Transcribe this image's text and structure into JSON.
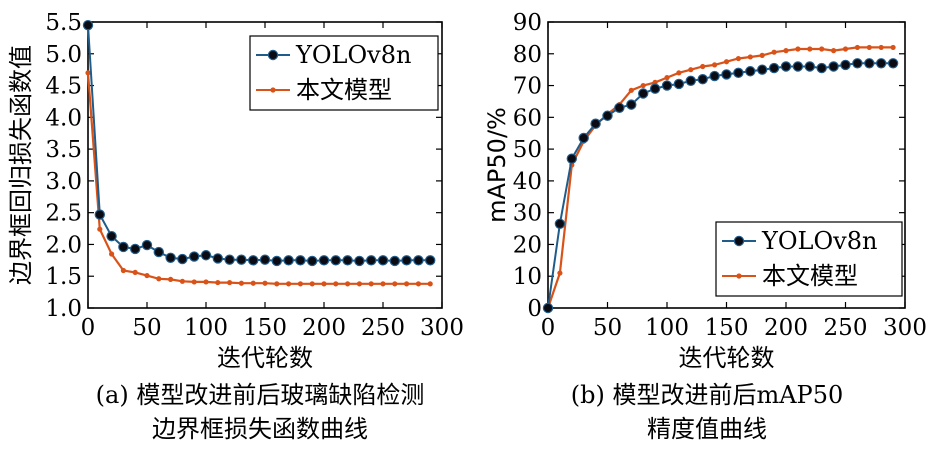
{
  "chart_data": [
    {
      "type": "line",
      "panel": "a",
      "xlabel": "迭代轮数",
      "ylabel": "边界框回归损失函数值",
      "xlim": [
        0,
        300
      ],
      "ylim": [
        1.0,
        5.5
      ],
      "xticks": [
        0,
        50,
        100,
        150,
        200,
        250,
        300
      ],
      "yticks": [
        1.0,
        1.5,
        2.0,
        2.5,
        3.0,
        3.5,
        4.0,
        4.5,
        5.0,
        5.5
      ],
      "ytick_labels": [
        "1.0",
        "1.5",
        "2.0",
        "2.5",
        "3.0",
        "3.5",
        "4.0",
        "4.5",
        "5.0",
        "5.5"
      ],
      "grid": false,
      "legend_position": "top-right",
      "series": [
        {
          "name": "YOLOv8n",
          "color": "#1f5c8a",
          "marker": "black-filled-circle",
          "x": [
            0,
            10,
            20,
            30,
            40,
            50,
            60,
            70,
            80,
            90,
            100,
            110,
            120,
            130,
            140,
            150,
            160,
            170,
            180,
            190,
            200,
            210,
            220,
            230,
            240,
            250,
            260,
            270,
            280,
            290
          ],
          "values": [
            5.45,
            2.47,
            2.13,
            1.96,
            1.93,
            1.99,
            1.88,
            1.79,
            1.77,
            1.81,
            1.83,
            1.78,
            1.76,
            1.76,
            1.75,
            1.76,
            1.74,
            1.75,
            1.75,
            1.74,
            1.75,
            1.75,
            1.75,
            1.74,
            1.75,
            1.75,
            1.74,
            1.75,
            1.75,
            1.75
          ]
        },
        {
          "name": "本文模型",
          "color": "#d95319",
          "marker": "small-dot",
          "x": [
            0,
            10,
            20,
            30,
            40,
            50,
            60,
            70,
            80,
            90,
            100,
            110,
            120,
            130,
            140,
            150,
            160,
            170,
            180,
            190,
            200,
            210,
            220,
            230,
            240,
            250,
            260,
            270,
            280,
            290
          ],
          "values": [
            4.7,
            2.24,
            1.85,
            1.59,
            1.56,
            1.51,
            1.46,
            1.45,
            1.42,
            1.41,
            1.41,
            1.4,
            1.4,
            1.39,
            1.39,
            1.39,
            1.38,
            1.38,
            1.38,
            1.38,
            1.38,
            1.38,
            1.38,
            1.38,
            1.38,
            1.38,
            1.38,
            1.38,
            1.38,
            1.38
          ]
        }
      ]
    },
    {
      "type": "line",
      "panel": "b",
      "xlabel": "迭代轮数",
      "ylabel": "mAP50/%",
      "xlim": [
        0,
        300
      ],
      "ylim": [
        0,
        90
      ],
      "xticks": [
        0,
        50,
        100,
        150,
        200,
        250,
        300
      ],
      "yticks": [
        0,
        10,
        20,
        30,
        40,
        50,
        60,
        70,
        80,
        90
      ],
      "ytick_labels": [
        "0",
        "10",
        "20",
        "30",
        "40",
        "50",
        "60",
        "70",
        "80",
        "90"
      ],
      "grid": false,
      "legend_position": "bottom-right",
      "series": [
        {
          "name": "YOLOv8n",
          "color": "#1f5c8a",
          "marker": "black-filled-circle",
          "x": [
            0,
            10,
            20,
            30,
            40,
            50,
            60,
            70,
            80,
            90,
            100,
            110,
            120,
            130,
            140,
            150,
            160,
            170,
            180,
            190,
            200,
            210,
            220,
            230,
            240,
            250,
            260,
            270,
            280,
            290
          ],
          "values": [
            0,
            26.5,
            47,
            53.5,
            58,
            60.5,
            63,
            64,
            67.5,
            69,
            70,
            70.5,
            71.5,
            72,
            73,
            73.5,
            74,
            74.5,
            75,
            75.5,
            76,
            76,
            76,
            75.5,
            76,
            76.5,
            77,
            77,
            77,
            77
          ]
        },
        {
          "name": "本文模型",
          "color": "#d95319",
          "marker": "small-dot",
          "x": [
            0,
            10,
            20,
            30,
            40,
            50,
            60,
            70,
            80,
            90,
            100,
            110,
            120,
            130,
            140,
            150,
            160,
            170,
            180,
            190,
            200,
            210,
            220,
            230,
            240,
            250,
            260,
            270,
            280,
            290
          ],
          "values": [
            0,
            11,
            45,
            52.5,
            57.5,
            61,
            64,
            68.5,
            70,
            71,
            72.5,
            74,
            75,
            76,
            76.5,
            77.5,
            78.5,
            79,
            79.5,
            80.5,
            81,
            81.5,
            81.5,
            81.5,
            81,
            81.5,
            82,
            82,
            82,
            82
          ]
        }
      ]
    }
  ],
  "captions": {
    "a_line1": "(a) 模型改进前后玻璃缺陷检测",
    "a_line2": "边界框损失函数曲线",
    "b_line1": "(b) 模型改进前后mAP50",
    "b_line2": "精度值曲线"
  }
}
